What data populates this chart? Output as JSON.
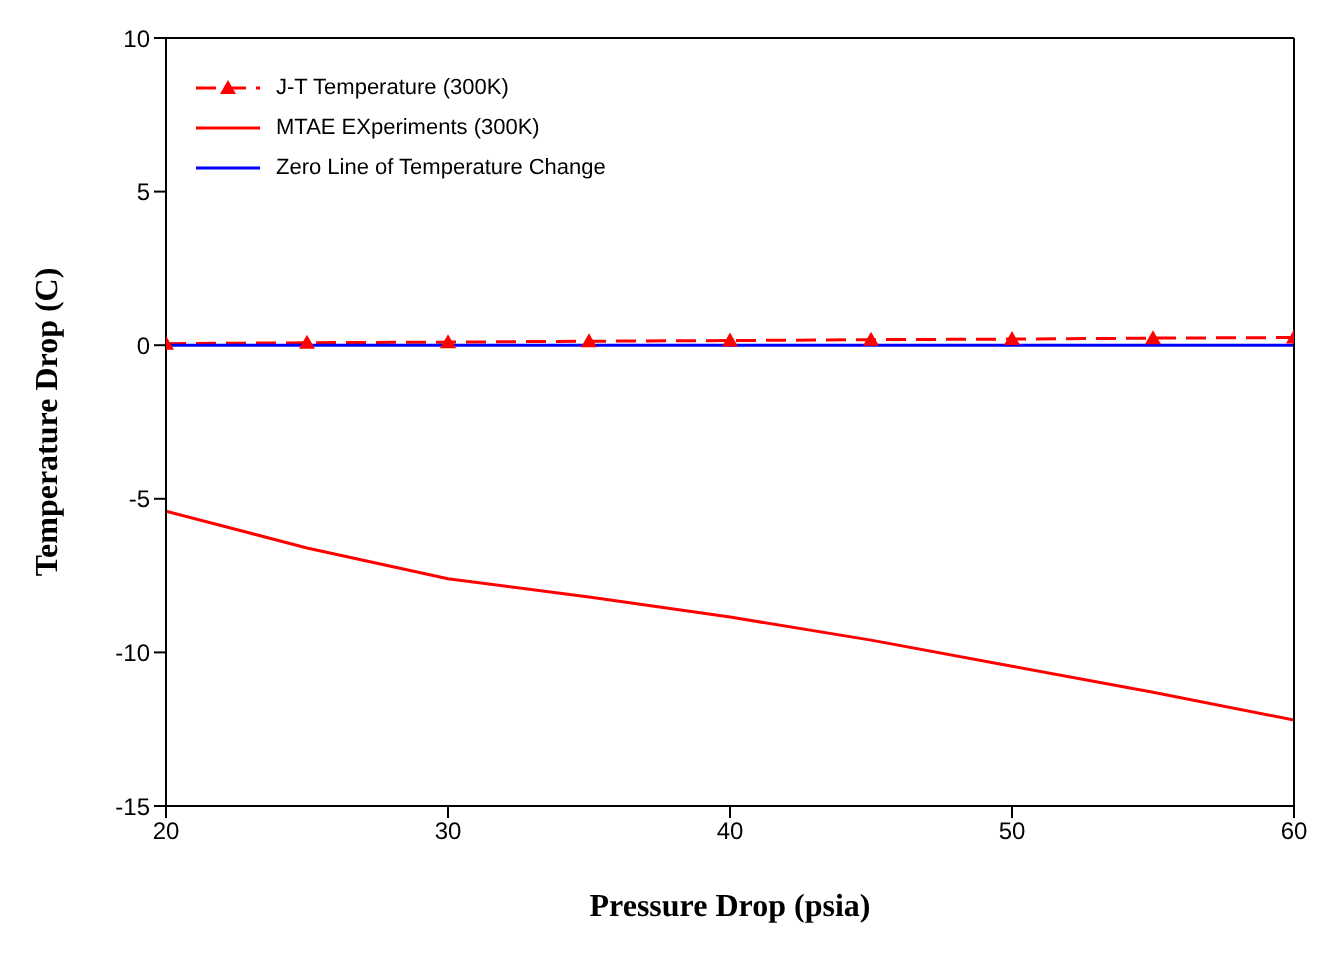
{
  "chart_data": {
    "type": "line",
    "xlabel": "Pressure Drop (psia)",
    "ylabel": "Temperature Drop (C)",
    "x": [
      20,
      25,
      30,
      35,
      40,
      45,
      50,
      55,
      60
    ],
    "series": [
      {
        "name": "J-T Temperature (300K)",
        "color": "#ff0000",
        "values": [
          0.05,
          0.08,
          0.1,
          0.13,
          0.15,
          0.18,
          0.2,
          0.23,
          0.25
        ],
        "line_style": "dashed",
        "marker": "triangle"
      },
      {
        "name": "MTAE EXperiments (300K)",
        "color": "#ff0000",
        "values": [
          -5.4,
          -6.6,
          -7.6,
          -8.2,
          -8.85,
          -9.6,
          -10.45,
          -11.3,
          -12.2
        ],
        "line_style": "solid",
        "marker": "none"
      },
      {
        "name": "Zero Line of Temperature Change",
        "color": "#0000ff",
        "values": [
          0,
          0,
          0,
          0,
          0,
          0,
          0,
          0,
          0
        ],
        "line_style": "solid",
        "marker": "none"
      }
    ],
    "xlim": [
      20,
      60
    ],
    "xticks": [
      20,
      30,
      40,
      50,
      60
    ],
    "ylim": [
      -15,
      10
    ],
    "yticks": [
      -15,
      -10,
      -5,
      0,
      5,
      10
    ],
    "grid": false,
    "legend": "top left"
  }
}
